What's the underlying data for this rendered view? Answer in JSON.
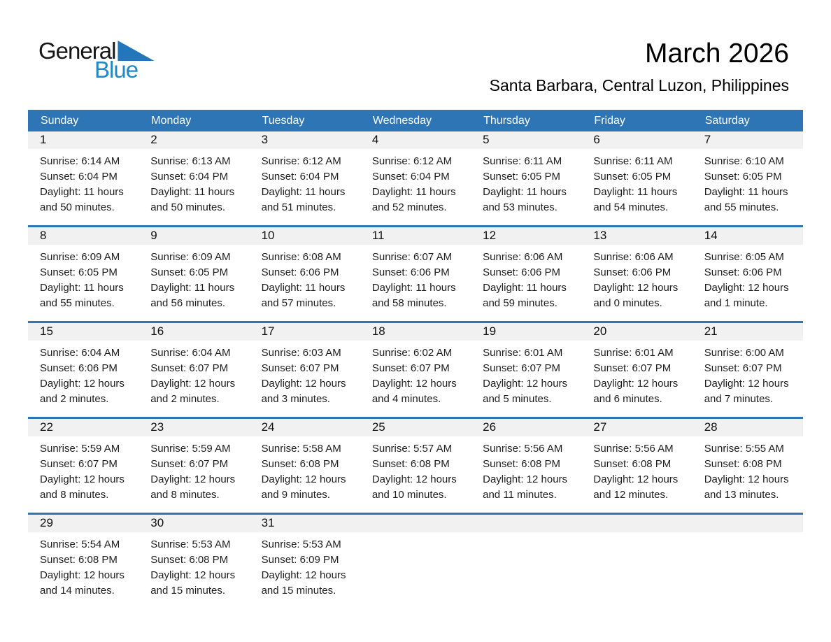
{
  "page": {
    "logo": {
      "general": "General",
      "blue": "Blue"
    },
    "title": "March 2026",
    "subtitle": "Santa Barbara, Central Luzon, Philippines"
  },
  "theme": {
    "header_blue": "#2E75B6",
    "band_gray": "#F1F1F1",
    "logo_blue": "#1E88CB",
    "triangle_blue": "#2176BC"
  },
  "calendar": {
    "day_headers": [
      "Sunday",
      "Monday",
      "Tuesday",
      "Wednesday",
      "Thursday",
      "Friday",
      "Saturday"
    ],
    "labels": {
      "sunrise": "Sunrise:",
      "sunset": "Sunset:",
      "daylight": "Daylight:"
    },
    "weeks": [
      [
        {
          "day": "1",
          "sunrise": "6:14 AM",
          "sunset": "6:04 PM",
          "daylight": "11 hours and 50 minutes."
        },
        {
          "day": "2",
          "sunrise": "6:13 AM",
          "sunset": "6:04 PM",
          "daylight": "11 hours and 50 minutes."
        },
        {
          "day": "3",
          "sunrise": "6:12 AM",
          "sunset": "6:04 PM",
          "daylight": "11 hours and 51 minutes."
        },
        {
          "day": "4",
          "sunrise": "6:12 AM",
          "sunset": "6:04 PM",
          "daylight": "11 hours and 52 minutes."
        },
        {
          "day": "5",
          "sunrise": "6:11 AM",
          "sunset": "6:05 PM",
          "daylight": "11 hours and 53 minutes."
        },
        {
          "day": "6",
          "sunrise": "6:11 AM",
          "sunset": "6:05 PM",
          "daylight": "11 hours and 54 minutes."
        },
        {
          "day": "7",
          "sunrise": "6:10 AM",
          "sunset": "6:05 PM",
          "daylight": "11 hours and 55 minutes."
        }
      ],
      [
        {
          "day": "8",
          "sunrise": "6:09 AM",
          "sunset": "6:05 PM",
          "daylight": "11 hours and 55 minutes."
        },
        {
          "day": "9",
          "sunrise": "6:09 AM",
          "sunset": "6:05 PM",
          "daylight": "11 hours and 56 minutes."
        },
        {
          "day": "10",
          "sunrise": "6:08 AM",
          "sunset": "6:06 PM",
          "daylight": "11 hours and 57 minutes."
        },
        {
          "day": "11",
          "sunrise": "6:07 AM",
          "sunset": "6:06 PM",
          "daylight": "11 hours and 58 minutes."
        },
        {
          "day": "12",
          "sunrise": "6:06 AM",
          "sunset": "6:06 PM",
          "daylight": "11 hours and 59 minutes."
        },
        {
          "day": "13",
          "sunrise": "6:06 AM",
          "sunset": "6:06 PM",
          "daylight": "12 hours and 0 minutes."
        },
        {
          "day": "14",
          "sunrise": "6:05 AM",
          "sunset": "6:06 PM",
          "daylight": "12 hours and 1 minute."
        }
      ],
      [
        {
          "day": "15",
          "sunrise": "6:04 AM",
          "sunset": "6:06 PM",
          "daylight": "12 hours and 2 minutes."
        },
        {
          "day": "16",
          "sunrise": "6:04 AM",
          "sunset": "6:07 PM",
          "daylight": "12 hours and 2 minutes."
        },
        {
          "day": "17",
          "sunrise": "6:03 AM",
          "sunset": "6:07 PM",
          "daylight": "12 hours and 3 minutes."
        },
        {
          "day": "18",
          "sunrise": "6:02 AM",
          "sunset": "6:07 PM",
          "daylight": "12 hours and 4 minutes."
        },
        {
          "day": "19",
          "sunrise": "6:01 AM",
          "sunset": "6:07 PM",
          "daylight": "12 hours and 5 minutes."
        },
        {
          "day": "20",
          "sunrise": "6:01 AM",
          "sunset": "6:07 PM",
          "daylight": "12 hours and 6 minutes."
        },
        {
          "day": "21",
          "sunrise": "6:00 AM",
          "sunset": "6:07 PM",
          "daylight": "12 hours and 7 minutes."
        }
      ],
      [
        {
          "day": "22",
          "sunrise": "5:59 AM",
          "sunset": "6:07 PM",
          "daylight": "12 hours and 8 minutes."
        },
        {
          "day": "23",
          "sunrise": "5:59 AM",
          "sunset": "6:07 PM",
          "daylight": "12 hours and 8 minutes."
        },
        {
          "day": "24",
          "sunrise": "5:58 AM",
          "sunset": "6:08 PM",
          "daylight": "12 hours and 9 minutes."
        },
        {
          "day": "25",
          "sunrise": "5:57 AM",
          "sunset": "6:08 PM",
          "daylight": "12 hours and 10 minutes."
        },
        {
          "day": "26",
          "sunrise": "5:56 AM",
          "sunset": "6:08 PM",
          "daylight": "12 hours and 11 minutes."
        },
        {
          "day": "27",
          "sunrise": "5:56 AM",
          "sunset": "6:08 PM",
          "daylight": "12 hours and 12 minutes."
        },
        {
          "day": "28",
          "sunrise": "5:55 AM",
          "sunset": "6:08 PM",
          "daylight": "12 hours and 13 minutes."
        }
      ],
      [
        {
          "day": "29",
          "sunrise": "5:54 AM",
          "sunset": "6:08 PM",
          "daylight": "12 hours and 14 minutes."
        },
        {
          "day": "30",
          "sunrise": "5:53 AM",
          "sunset": "6:08 PM",
          "daylight": "12 hours and 15 minutes."
        },
        {
          "day": "31",
          "sunrise": "5:53 AM",
          "sunset": "6:09 PM",
          "daylight": "12 hours and 15 minutes."
        },
        null,
        null,
        null,
        null
      ]
    ]
  }
}
